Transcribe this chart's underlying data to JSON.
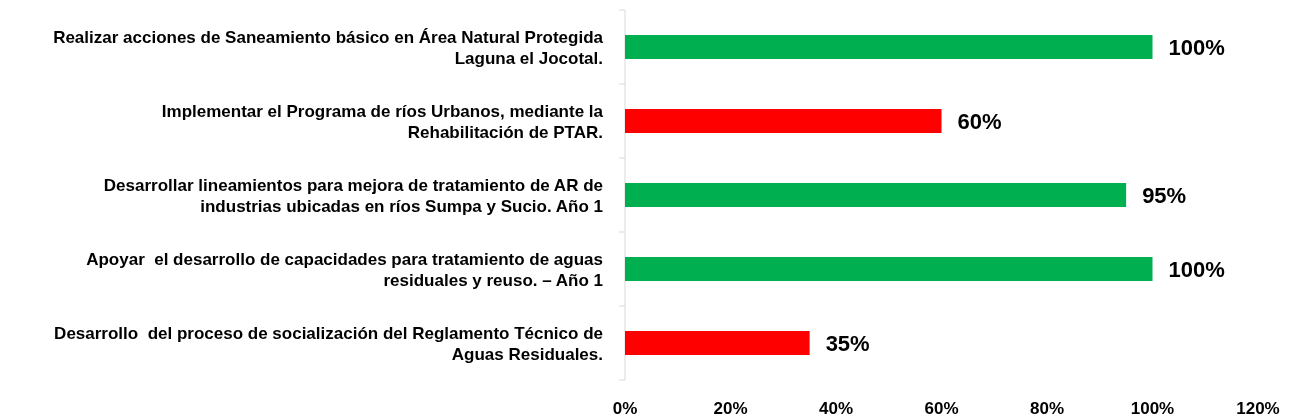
{
  "chart_data": {
    "type": "bar",
    "orientation": "horizontal",
    "categories": [
      "Realizar acciones de Saneamiento básico en Área Natural Protegida Laguna el Jocotal.",
      "Implementar el Programa de ríos Urbanos, mediante la Rehabilitación de PTAR.",
      "Desarrollar lineamientos para mejora de tratamiento de AR de industrias ubicadas en ríos Sumpa y Sucio. Año 1",
      "Apoyar  el desarrollo de capacidades para tratamiento de aguas residuales y reuso. – Año 1",
      "Desarrollo  del proceso de socialización del Reglamento Técnico de Aguas Residuales."
    ],
    "values": [
      100,
      60,
      95,
      100,
      35
    ],
    "colors": [
      "#00b050",
      "#ff0000",
      "#00b050",
      "#00b050",
      "#ff0000"
    ],
    "value_labels": [
      "100%",
      "60%",
      "95%",
      "100%",
      "35%"
    ],
    "xlim": [
      0,
      120
    ],
    "xticks": [
      {
        "value": 0,
        "label": "0%"
      },
      {
        "value": 20,
        "label": "20%"
      },
      {
        "value": 40,
        "label": "40%"
      },
      {
        "value": 60,
        "label": "60%"
      },
      {
        "value": 80,
        "label": "80%"
      },
      {
        "value": 100,
        "label": "100%"
      },
      {
        "value": 120,
        "label": "120%"
      }
    ],
    "grid": false
  }
}
